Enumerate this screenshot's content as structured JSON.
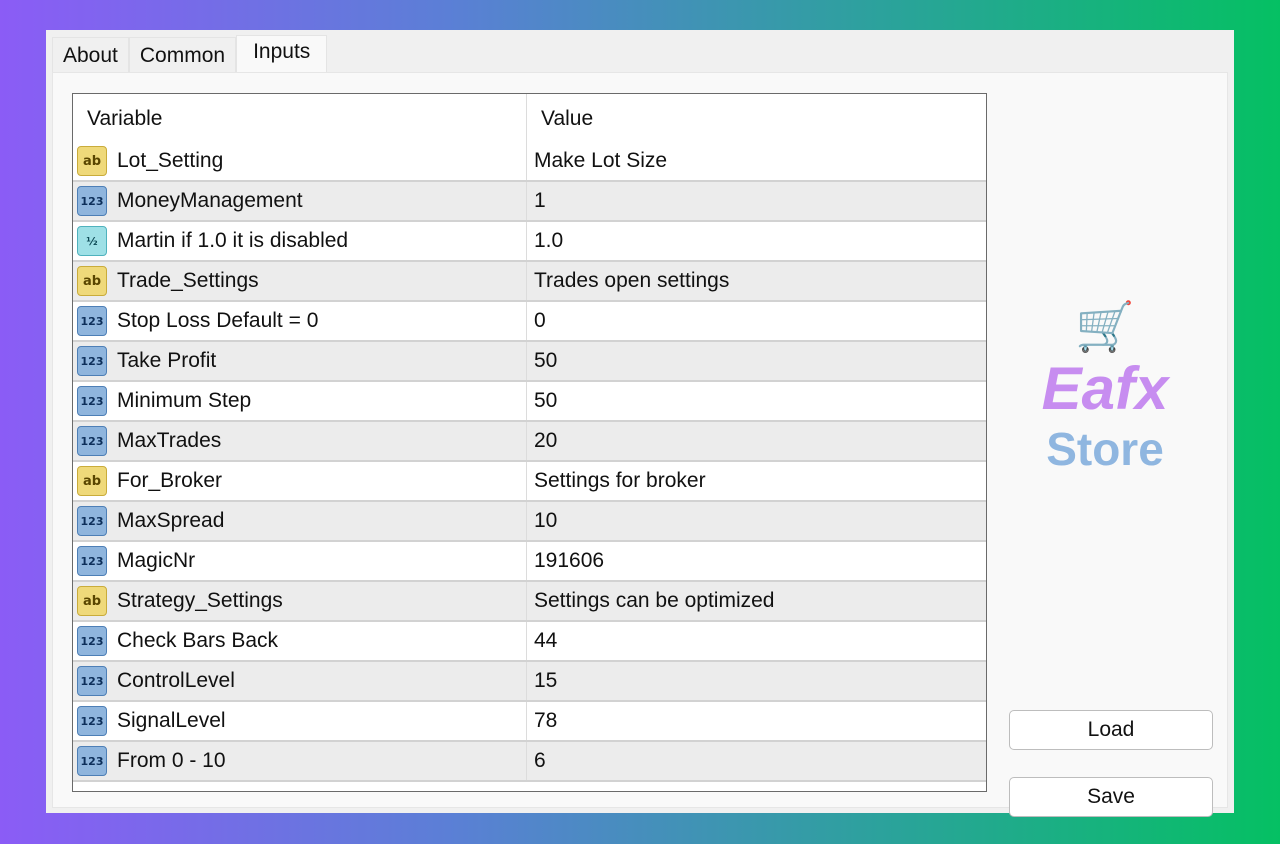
{
  "tabs": [
    {
      "label": "About"
    },
    {
      "label": "Common"
    },
    {
      "label": "Inputs",
      "active": true
    }
  ],
  "table": {
    "headers": {
      "variable": "Variable",
      "value": "Value"
    },
    "rows": [
      {
        "type": "string",
        "icon": "ab",
        "name": "Lot_Setting",
        "value": "Make Lot Size"
      },
      {
        "type": "int",
        "icon": "123",
        "name": "MoneyManagement",
        "value": "1"
      },
      {
        "type": "double",
        "icon": "½",
        "name": "Martin if 1.0 it is disabled",
        "value": "1.0"
      },
      {
        "type": "string",
        "icon": "ab",
        "name": "Trade_Settings",
        "value": "Trades open settings"
      },
      {
        "type": "int",
        "icon": "123",
        "name": "Stop Loss Default = 0",
        "value": "0"
      },
      {
        "type": "int",
        "icon": "123",
        "name": "Take Profit",
        "value": "50"
      },
      {
        "type": "int",
        "icon": "123",
        "name": "Minimum Step",
        "value": "50"
      },
      {
        "type": "int",
        "icon": "123",
        "name": "MaxTrades",
        "value": "20"
      },
      {
        "type": "string",
        "icon": "ab",
        "name": "For_Broker",
        "value": "Settings for broker"
      },
      {
        "type": "int",
        "icon": "123",
        "name": "MaxSpread",
        "value": "10"
      },
      {
        "type": "int",
        "icon": "123",
        "name": "MagicNr",
        "value": "191606"
      },
      {
        "type": "string",
        "icon": "ab",
        "name": "Strategy_Settings",
        "value": "Settings can be optimized"
      },
      {
        "type": "int",
        "icon": "123",
        "name": "Check Bars Back",
        "value": "44"
      },
      {
        "type": "int",
        "icon": "123",
        "name": "ControlLevel",
        "value": "15"
      },
      {
        "type": "int",
        "icon": "123",
        "name": "SignalLevel",
        "value": "78"
      },
      {
        "type": "int",
        "icon": "123",
        "name": "From 0 - 10",
        "value": "6"
      }
    ]
  },
  "buttons": {
    "load": "Load",
    "save": "Save"
  },
  "watermark": {
    "brand": "Eafx",
    "suffix": "Store"
  }
}
